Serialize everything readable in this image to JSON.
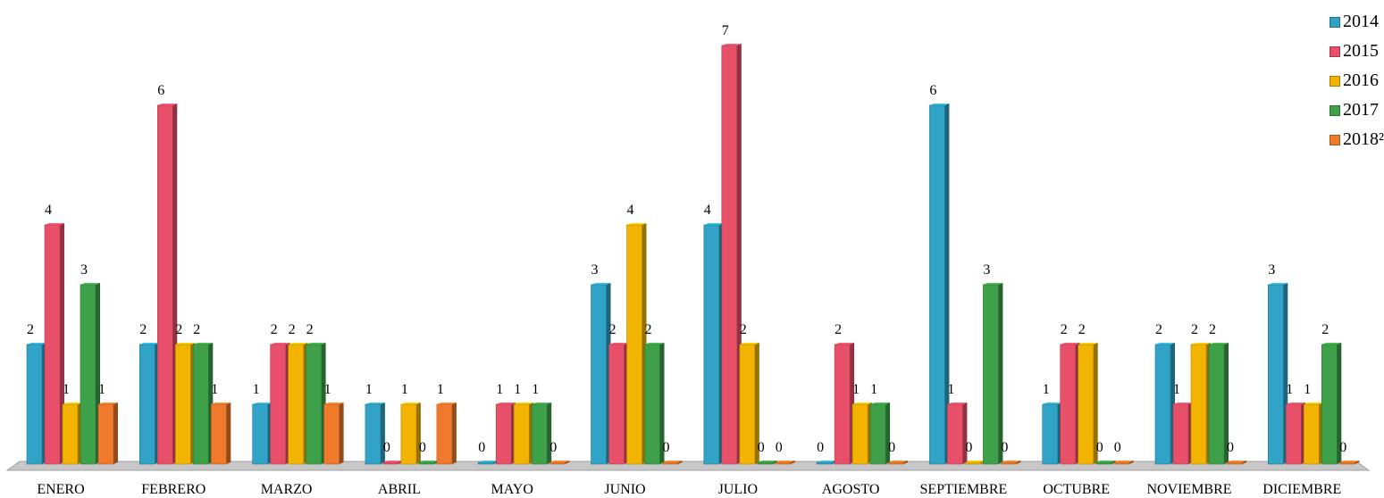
{
  "chart_data": {
    "type": "bar",
    "title": "",
    "xlabel": "",
    "ylabel": "",
    "ylim": [
      0,
      7
    ],
    "grid": false,
    "legend_position": "top-right",
    "categories": [
      "ENERO",
      "FEBRERO",
      "MARZO",
      "ABRIL",
      "MAYO",
      "JUNIO",
      "JULIO",
      "AGOSTO",
      "SEPTIEMBRE",
      "OCTUBRE",
      "NOVIEMBRE",
      "DICIEMBRE"
    ],
    "series": [
      {
        "name": "2014",
        "color": "#31a3c6",
        "values": [
          2,
          2,
          1,
          1,
          0,
          3,
          4,
          0,
          6,
          1,
          2,
          3
        ]
      },
      {
        "name": "2015",
        "color": "#e8506a",
        "values": [
          4,
          6,
          2,
          0,
          1,
          2,
          7,
          2,
          1,
          2,
          1,
          1
        ]
      },
      {
        "name": "2016",
        "color": "#f2b400",
        "values": [
          1,
          2,
          2,
          1,
          1,
          4,
          2,
          1,
          0,
          2,
          2,
          1
        ]
      },
      {
        "name": "2017",
        "color": "#3fa04a",
        "values": [
          3,
          2,
          2,
          0,
          1,
          2,
          0,
          1,
          3,
          0,
          2,
          2
        ]
      },
      {
        "name": "2018²",
        "color": "#ef7a2b",
        "values": [
          1,
          1,
          1,
          1,
          0,
          0,
          0,
          0,
          0,
          0,
          0,
          0
        ]
      }
    ]
  }
}
